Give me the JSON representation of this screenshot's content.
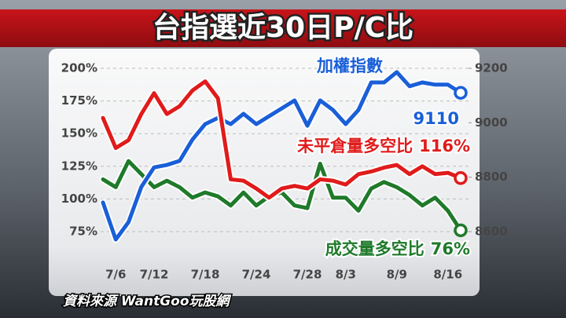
{
  "chart_data": {
    "type": "line",
    "title": "台指選近30日P/C比",
    "source": "資料來源 WantGoo玩股網",
    "categories": [
      null,
      "7/6",
      null,
      null,
      "7/12",
      null,
      null,
      null,
      "7/18",
      null,
      null,
      null,
      "7/24",
      null,
      null,
      null,
      "7/28",
      null,
      null,
      "8/3",
      null,
      null,
      null,
      "8/9",
      null,
      null,
      null,
      "8/16",
      null
    ],
    "ylim": [
      75,
      200
    ],
    "yticks": [
      {
        "value": 200,
        "label": "200%"
      },
      {
        "value": 175,
        "label": "175%"
      },
      {
        "value": 150,
        "label": "150%"
      },
      {
        "value": 125,
        "label": "125%"
      },
      {
        "value": 100,
        "label": "100%"
      },
      {
        "value": 75,
        "label": "75%"
      }
    ],
    "y2lim": [
      8600,
      9200
    ],
    "y2ticks": [
      9200,
      9000,
      8800,
      8600
    ],
    "grid": true,
    "series": [
      {
        "name": "加權指數",
        "color": "#1a5fd8",
        "axis": "y2",
        "end_label": "9110",
        "values": [
          8707,
          8571,
          8635,
          8764,
          8836,
          8845,
          8860,
          8938,
          8995,
          9018,
          8995,
          9033,
          8995,
          9024,
          9053,
          9082,
          8989,
          9082,
          9047,
          8995,
          9047,
          9148,
          9148,
          9186,
          9134,
          9148,
          9140,
          9140,
          9110
        ]
      },
      {
        "name": "未平倉量多空比",
        "color": "#e01b1b",
        "end_label": "116%",
        "values": [
          162,
          139,
          145,
          165,
          181,
          165,
          171,
          183,
          190,
          177,
          115,
          114,
          108,
          101,
          108,
          110,
          108,
          115,
          114,
          111,
          119,
          121,
          124,
          126,
          119,
          125,
          119,
          120,
          116
        ]
      },
      {
        "name": "成交量多空比",
        "color": "#1f7a2a",
        "end_label": "76%",
        "values": [
          115,
          109,
          129,
          119,
          109,
          114,
          109,
          101,
          105,
          102,
          95,
          105,
          95,
          102,
          105,
          95,
          93,
          127,
          101,
          101,
          91,
          108,
          113,
          109,
          103,
          95,
          101,
          91,
          76
        ]
      }
    ]
  }
}
